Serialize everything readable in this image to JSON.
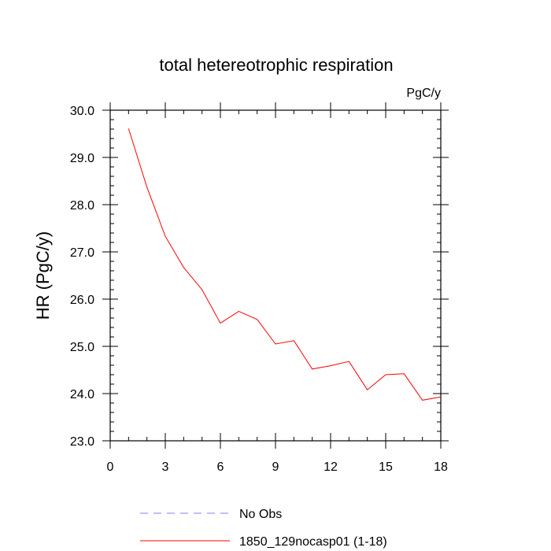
{
  "chart_data": {
    "type": "line",
    "title": "total hetereotrophic respiration",
    "units_label": "PgC/y",
    "xlabel": "",
    "ylabel": "HR  (PgC/y)",
    "xlim": [
      0,
      18
    ],
    "ylim": [
      23.0,
      30.0
    ],
    "x_ticks": [
      0,
      3,
      6,
      9,
      12,
      15,
      18
    ],
    "x_tick_labels": [
      "0",
      "3",
      "6",
      "9",
      "12",
      "15",
      "18"
    ],
    "y_ticks": [
      23.0,
      24.0,
      25.0,
      26.0,
      27.0,
      28.0,
      29.0,
      30.0
    ],
    "y_tick_labels": [
      "23.0",
      "24.0",
      "25.0",
      "26.0",
      "27.0",
      "28.0",
      "29.0",
      "30.0"
    ],
    "grid": false,
    "legend_position": "bottom",
    "series": [
      {
        "name": "1850_129nocasp01 (1-18)",
        "color": "#ff0000",
        "style": "solid",
        "x": [
          1,
          2,
          3,
          4,
          5,
          6,
          7,
          8,
          9,
          10,
          11,
          12,
          13,
          14,
          15,
          16,
          17,
          18
        ],
        "y": [
          29.61,
          28.37,
          27.33,
          26.67,
          26.2,
          25.49,
          25.74,
          25.57,
          25.05,
          25.12,
          24.52,
          24.59,
          24.68,
          24.08,
          24.4,
          24.42,
          23.86,
          23.93
        ]
      }
    ],
    "legend": [
      {
        "label": "No Obs",
        "color": "#8080ff",
        "style": "dashed"
      },
      {
        "label": "1850_129nocasp01 (1-18)",
        "color": "#ff0000",
        "style": "solid"
      }
    ]
  }
}
